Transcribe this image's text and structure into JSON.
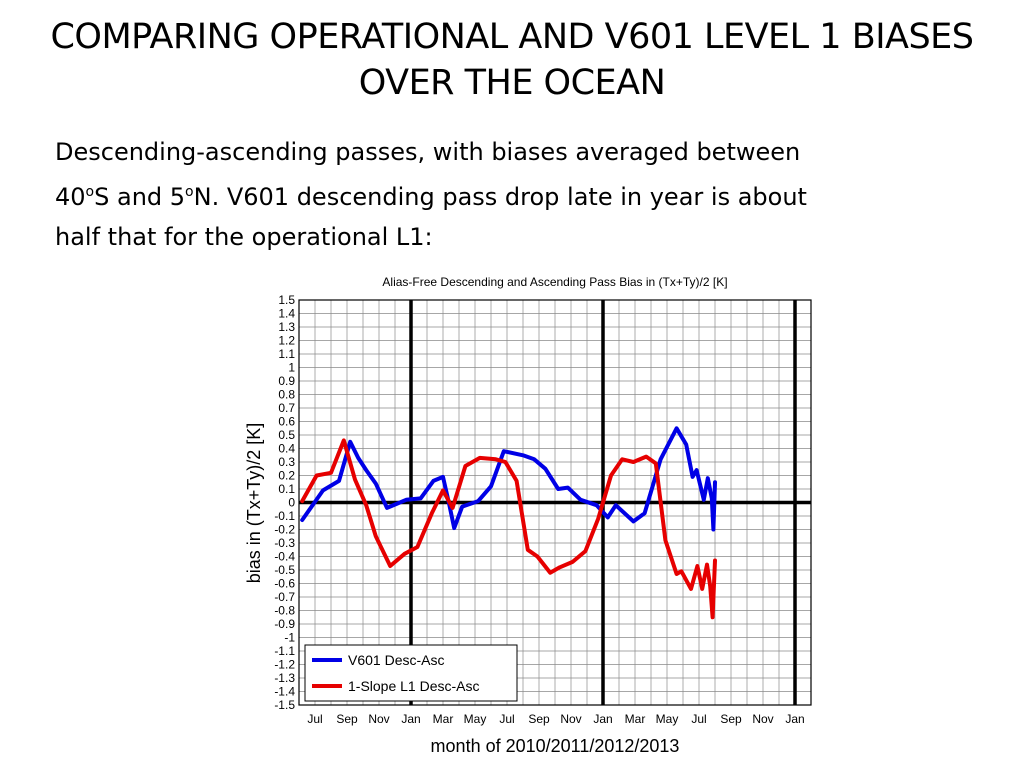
{
  "slide": {
    "title_line1": "COMPARING OPERATIONAL AND V601 LEVEL 1 BIASES",
    "title_line2": "OVER THE OCEAN",
    "body_part1": "Descending-ascending passes, with biases averaged between",
    "body_part2": "40",
    "body_sup1": "o",
    "body_part3": "S and 5",
    "body_sup2": "o",
    "body_part4": "N. V601 descending pass drop late in year is about",
    "body_part5": "half that for the operational L1:"
  },
  "chart_data": {
    "type": "line",
    "title": "Alias-Free Descending and Ascending Pass Bias in (Tx+Ty)/2 [K]",
    "xlabel": "month of 2010/2011/2012/2013",
    "ylabel": "bias in (Tx+Ty)/2 [K]",
    "ylim": [
      -1.5,
      1.5
    ],
    "yticks": [
      "1.5",
      "1.4",
      "1.3",
      "1.2",
      "1.1",
      "1",
      "0.9",
      "0.8",
      "0.7",
      "0.6",
      "0.5",
      "0.4",
      "0.3",
      "0.2",
      "0.1",
      "0",
      "-0.1",
      "-0.2",
      "-0.3",
      "-0.4",
      "-0.5",
      "-0.6",
      "-0.7",
      "-0.8",
      "-0.9",
      "-1",
      "-1.1",
      "-1.2",
      "-1.3",
      "-1.4",
      "-1.5"
    ],
    "xlim": [
      0,
      32
    ],
    "xticks": [
      {
        "x": 1,
        "label": "Jul"
      },
      {
        "x": 3,
        "label": "Sep"
      },
      {
        "x": 5,
        "label": "Nov"
      },
      {
        "x": 7,
        "label": "Jan"
      },
      {
        "x": 9,
        "label": "Mar"
      },
      {
        "x": 11,
        "label": "May"
      },
      {
        "x": 13,
        "label": "Jul"
      },
      {
        "x": 15,
        "label": "Sep"
      },
      {
        "x": 17,
        "label": "Nov"
      },
      {
        "x": 19,
        "label": "Jan"
      },
      {
        "x": 21,
        "label": "Mar"
      },
      {
        "x": 23,
        "label": "May"
      },
      {
        "x": 25,
        "label": "Jul"
      },
      {
        "x": 27,
        "label": "Sep"
      },
      {
        "x": 29,
        "label": "Nov"
      },
      {
        "x": 31,
        "label": "Jan"
      }
    ],
    "year_lines_x": [
      7,
      19,
      31
    ],
    "zero_line_y": 0,
    "grid": true,
    "legend_position": "bottom-left",
    "series": [
      {
        "name": "V601 Desc-Asc",
        "color": "#0000e6",
        "points": [
          [
            0.2,
            -0.13
          ],
          [
            1.5,
            0.09
          ],
          [
            2.5,
            0.16
          ],
          [
            3.2,
            0.45
          ],
          [
            3.7,
            0.33
          ],
          [
            4.2,
            0.24
          ],
          [
            4.8,
            0.14
          ],
          [
            5.5,
            -0.04
          ],
          [
            6.1,
            -0.01
          ],
          [
            6.7,
            0.02
          ],
          [
            7.6,
            0.03
          ],
          [
            8.4,
            0.16
          ],
          [
            9.0,
            0.19
          ],
          [
            9.4,
            -0.02
          ],
          [
            9.7,
            -0.19
          ],
          [
            10.2,
            -0.03
          ],
          [
            11.2,
            0.01
          ],
          [
            12.0,
            0.12
          ],
          [
            12.8,
            0.38
          ],
          [
            14.0,
            0.35
          ],
          [
            14.7,
            0.32
          ],
          [
            15.4,
            0.25
          ],
          [
            16.2,
            0.1
          ],
          [
            16.8,
            0.11
          ],
          [
            17.6,
            0.02
          ],
          [
            18.6,
            -0.02
          ],
          [
            19.3,
            -0.11
          ],
          [
            19.8,
            -0.02
          ],
          [
            20.9,
            -0.14
          ],
          [
            21.6,
            -0.08
          ],
          [
            22.6,
            0.32
          ],
          [
            23.6,
            0.55
          ],
          [
            24.2,
            0.43
          ],
          [
            24.6,
            0.19
          ],
          [
            24.85,
            0.24
          ],
          [
            25.3,
            0.02
          ],
          [
            25.55,
            0.18
          ],
          [
            25.8,
            0.03
          ],
          [
            25.9,
            -0.2
          ],
          [
            26.0,
            0.15
          ]
        ]
      },
      {
        "name": "1-Slope L1 Desc-Asc",
        "color": "#e60000",
        "points": [
          [
            0.2,
            0.01
          ],
          [
            1.1,
            0.2
          ],
          [
            2.0,
            0.22
          ],
          [
            2.8,
            0.46
          ],
          [
            3.5,
            0.17
          ],
          [
            4.2,
            -0.02
          ],
          [
            4.8,
            -0.25
          ],
          [
            5.7,
            -0.47
          ],
          [
            6.6,
            -0.38
          ],
          [
            7.4,
            -0.33
          ],
          [
            8.3,
            -0.08
          ],
          [
            9.0,
            0.09
          ],
          [
            9.6,
            -0.04
          ],
          [
            10.4,
            0.27
          ],
          [
            11.3,
            0.33
          ],
          [
            12.3,
            0.32
          ],
          [
            12.9,
            0.3
          ],
          [
            13.6,
            0.16
          ],
          [
            14.3,
            -0.35
          ],
          [
            14.9,
            -0.4
          ],
          [
            15.7,
            -0.52
          ],
          [
            16.3,
            -0.48
          ],
          [
            17.1,
            -0.44
          ],
          [
            17.9,
            -0.36
          ],
          [
            18.7,
            -0.12
          ],
          [
            19.5,
            0.2
          ],
          [
            20.2,
            0.32
          ],
          [
            20.9,
            0.3
          ],
          [
            21.7,
            0.34
          ],
          [
            22.3,
            0.29
          ],
          [
            22.9,
            -0.28
          ],
          [
            23.6,
            -0.53
          ],
          [
            23.9,
            -0.51
          ],
          [
            24.5,
            -0.64
          ],
          [
            24.9,
            -0.47
          ],
          [
            25.2,
            -0.64
          ],
          [
            25.5,
            -0.46
          ],
          [
            25.7,
            -0.62
          ],
          [
            25.85,
            -0.85
          ],
          [
            26.0,
            -0.43
          ]
        ]
      }
    ]
  }
}
